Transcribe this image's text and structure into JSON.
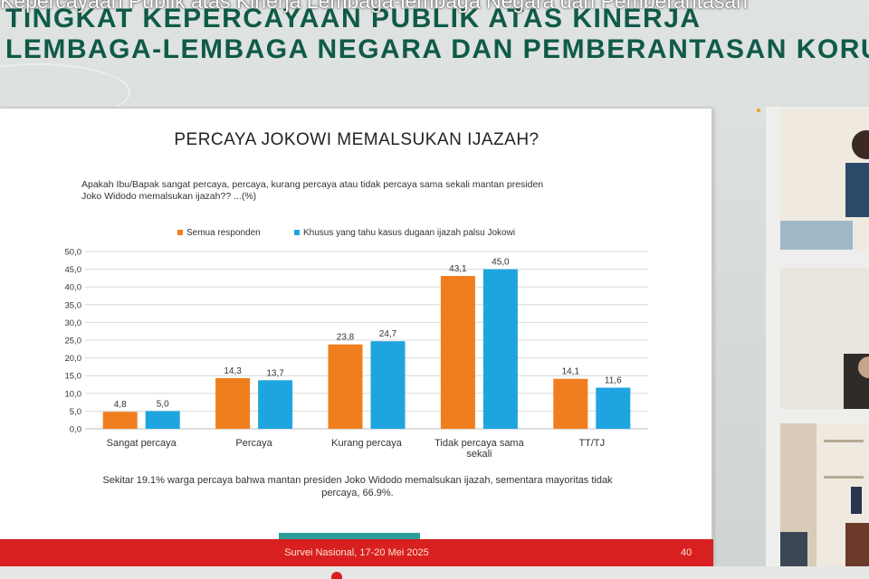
{
  "overlay_caption": "Kepercayaan Publik atas Kinerja Lembaga-lembaga Negara dan Pemberantasan",
  "banner": {
    "line1": "TINGKAT KEPERCAYAAN PUBLIK ATAS KINERJA",
    "line2": "LEMBAGA-LEMBAGA NEGARA DAN PEMBERANTASAN KORUPSI"
  },
  "slide": {
    "title": "PERCAYA JOKOWI MEMALSUKAN IJAZAH?",
    "question_line1": "Apakah Ibu/Bapak sangat percaya, percaya, kurang percaya atau tidak percaya sama sekali mantan presiden",
    "question_line2": "Joko Widodo memalsukan ijazah?? ...(%)",
    "footnote_line1": "Sekitar 19.1% warga percaya bahwa mantan presiden Joko Widodo memalsukan ijazah, sementara mayoritas tidak",
    "footnote_line2": "percaya, 66.9%.",
    "footer": "Survei Nasional, 17-20 Mei 2025",
    "page_number": "40"
  },
  "colors": {
    "series1": "#f07e1e",
    "series2": "#1ea5df",
    "footer_bar": "#d92021",
    "banner_title": "#0f5a48"
  },
  "chart_data": {
    "type": "bar",
    "categories": [
      "Sangat percaya",
      "Percaya",
      "Kurang percaya",
      "Tidak percaya sama sekali",
      "TT/TJ"
    ],
    "category_lines": [
      [
        "Sangat percaya"
      ],
      [
        "Percaya"
      ],
      [
        "Kurang percaya"
      ],
      [
        "Tidak percaya sama",
        "sekali"
      ],
      [
        "TT/TJ"
      ]
    ],
    "series": [
      {
        "name": "Semua responden",
        "values": [
          4.8,
          14.3,
          23.8,
          43.1,
          14.1
        ],
        "labels": [
          "4,8",
          "14,3",
          "23,8",
          "43,1",
          "14,1"
        ]
      },
      {
        "name": "Khusus yang tahu kasus dugaan ijazah palsu Jokowi",
        "values": [
          5.0,
          13.7,
          24.7,
          45.0,
          11.6
        ],
        "labels": [
          "5,0",
          "13,7",
          "24,7",
          "45,0",
          "11,6"
        ]
      }
    ],
    "yticks": [
      "0,0",
      "5,0",
      "10,0",
      "15,0",
      "20,0",
      "25,0",
      "30,0",
      "35,0",
      "40,0",
      "45,0",
      "50,0"
    ],
    "ylim": [
      0,
      50
    ],
    "grid": true,
    "legend": "top-center"
  }
}
